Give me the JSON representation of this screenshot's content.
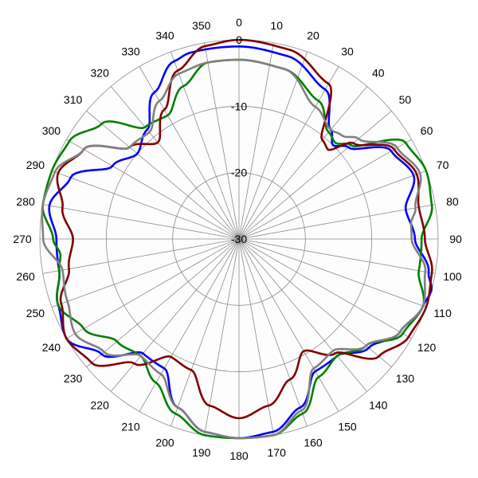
{
  "chart_data": {
    "type": "line",
    "subtype": "polar",
    "title": "",
    "angular_ticks": [
      "0",
      "10",
      "20",
      "30",
      "40",
      "50",
      "60",
      "70",
      "80",
      "90",
      "100",
      "110",
      "120",
      "130",
      "140",
      "150",
      "160",
      "170",
      "180",
      "190",
      "200",
      "210",
      "220",
      "230",
      "240",
      "250",
      "260",
      "270",
      "280",
      "290",
      "300",
      "310",
      "320",
      "330",
      "340",
      "350"
    ],
    "angular_direction": "clockwise",
    "angular_zero": "top",
    "radial_range": [
      -30,
      0
    ],
    "radial_ticks": [
      "0",
      "-10",
      "-20",
      "-30"
    ],
    "radial_tick_values": [
      0,
      -10,
      -20,
      -30
    ],
    "grid": true,
    "legend": "none",
    "series": [
      {
        "color": "#0000ff",
        "theta": [
          0,
          15,
          30,
          40,
          45,
          50,
          60,
          70,
          80,
          90,
          100,
          105,
          110,
          120,
          130,
          140,
          150,
          160,
          170,
          180,
          190,
          200,
          210,
          220,
          230,
          240,
          250,
          260,
          270,
          280,
          290,
          300,
          310,
          320,
          330,
          340,
          345,
          350,
          360
        ],
        "r": [
          -1,
          -1.5,
          -4,
          -8.5,
          -10,
          -8.5,
          -3.5,
          -2,
          -4.5,
          -3.5,
          -1,
          0,
          -0.5,
          -2,
          -4.5,
          -7,
          -7,
          -3,
          -0.5,
          0,
          -0.5,
          -3,
          -7.5,
          -7.5,
          -3,
          0,
          -1,
          -2.5,
          -2.5,
          -1,
          -3,
          -8,
          -10,
          -8.5,
          -4.5,
          -1.5,
          -1,
          -1,
          -1
        ]
      },
      {
        "color": "#008000",
        "theta": [
          0,
          15,
          30,
          40,
          45,
          50,
          60,
          70,
          80,
          90,
          100,
          110,
          120,
          130,
          140,
          150,
          160,
          170,
          180,
          190,
          200,
          210,
          220,
          230,
          240,
          250,
          260,
          265,
          270,
          280,
          290,
          300,
          310,
          320,
          330,
          340,
          350,
          360
        ],
        "r": [
          -3,
          -3.5,
          -6,
          -9,
          -9.5,
          -8,
          -1,
          0,
          -0.5,
          -2.5,
          -2.5,
          -0.5,
          -1.5,
          -5,
          -7,
          -6,
          -2,
          0,
          0,
          0,
          -2,
          -5,
          -7,
          -6,
          -3,
          -1,
          -2.5,
          -3,
          -2,
          0,
          0,
          -0.5,
          -3,
          -8,
          -8.5,
          -5.5,
          -3,
          -3
        ]
      },
      {
        "color": "#800000",
        "theta": [
          0,
          15,
          30,
          40,
          45,
          50,
          60,
          70,
          80,
          90,
          100,
          110,
          120,
          130,
          140,
          150,
          160,
          170,
          180,
          190,
          200,
          210,
          220,
          230,
          240,
          250,
          260,
          270,
          280,
          290,
          300,
          310,
          320,
          330,
          340,
          350,
          360
        ],
        "r": [
          0,
          -0.5,
          -3,
          -10.5,
          -11,
          -7.5,
          -3,
          -1.5,
          -2.5,
          -2,
          -0.5,
          0,
          -0.5,
          -2.5,
          -7.5,
          -10.5,
          -7.5,
          -4.5,
          -3,
          -4.5,
          -9,
          -9.5,
          -5.5,
          -1,
          0,
          -1.5,
          -4,
          -5,
          -3,
          -1,
          -3,
          -8.5,
          -11,
          -7.5,
          -3,
          -0.5,
          0
        ]
      },
      {
        "color": "#808080",
        "theta": [
          0,
          15,
          30,
          40,
          45,
          50,
          60,
          70,
          80,
          85,
          90,
          100,
          110,
          120,
          130,
          140,
          150,
          160,
          170,
          180,
          190,
          200,
          210,
          220,
          230,
          240,
          250,
          260,
          270,
          280,
          290,
          300,
          310,
          320,
          330,
          340,
          350,
          360
        ],
        "r": [
          -3,
          -3.5,
          -7,
          -8.5,
          -8,
          -6.5,
          -2.5,
          -1,
          -3,
          -4,
          -4,
          -1.5,
          -0.5,
          -2,
          -5,
          -8,
          -7.5,
          -2.5,
          0,
          0,
          -0.5,
          -3,
          -6.5,
          -7,
          -3.5,
          -1.5,
          -2.5,
          -3,
          -0.5,
          0,
          -0.5,
          -3,
          -8.5,
          -9,
          -6,
          -3.5,
          -3,
          -3
        ]
      }
    ]
  }
}
